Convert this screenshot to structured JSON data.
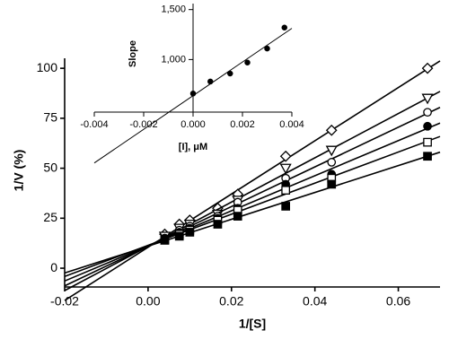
{
  "chart_data": [
    {
      "type": "scatter",
      "fit_line": true,
      "x_label": "1/[S]",
      "y_label": "1/V (%)",
      "x": [
        0.004,
        0.0075,
        0.01,
        0.0167,
        0.0215,
        0.033,
        0.044,
        0.067
      ],
      "series": [
        {
          "color": "#000000",
          "marker": "diamond-open",
          "values": [
            17,
            22,
            24,
            30,
            37,
            56,
            69,
            100
          ]
        },
        {
          "color": "#000000",
          "marker": "triangle-open",
          "values": [
            16,
            20,
            22,
            27,
            34,
            50,
            59,
            85
          ]
        },
        {
          "color": "#000000",
          "marker": "circle-open",
          "values": [
            15,
            19,
            21,
            26,
            33,
            45,
            53,
            78
          ]
        },
        {
          "color": "#000000",
          "marker": "circle-filled",
          "values": [
            15,
            18,
            20,
            25,
            30,
            42,
            47,
            71
          ]
        },
        {
          "color": "#000000",
          "marker": "square-open",
          "values": [
            14,
            17,
            19,
            24,
            29,
            39,
            45,
            63
          ]
        },
        {
          "color": "#000000",
          "marker": "square-filled",
          "values": [
            14,
            16,
            18,
            22,
            26,
            31,
            42,
            56
          ]
        }
      ],
      "xlim": [
        -0.02,
        0.07
      ],
      "ylim": [
        -9.4,
        105
      ],
      "xticks": [
        -0.02,
        {
          "value": 0,
          "label": "0.00"
        },
        0.02,
        0.04,
        0.06
      ],
      "yticks": [
        0,
        25,
        50,
        75,
        100
      ]
    },
    {
      "type": "scatter",
      "fit_line": true,
      "x_label": "[I], μM",
      "y_label": "Slope",
      "x": [
        0,
        0.0007,
        0.0015,
        0.0022,
        0.003,
        0.0037
      ],
      "series": [
        {
          "color": "#000000",
          "marker": "circle-filled",
          "values": [
            660,
            780,
            860,
            970,
            1110,
            1320
          ]
        }
      ],
      "xlim": [
        -0.004,
        0.004
      ],
      "ylim": [
        474,
        1560
      ],
      "xticks": [
        -0.004,
        -0.002,
        {
          "value": 0,
          "label": "0.000"
        },
        0.002,
        0.004
      ],
      "yticks": [
        {
          "value": 1000,
          "label": "1,000"
        },
        {
          "value": 1500,
          "label": "1,500"
        }
      ]
    }
  ]
}
